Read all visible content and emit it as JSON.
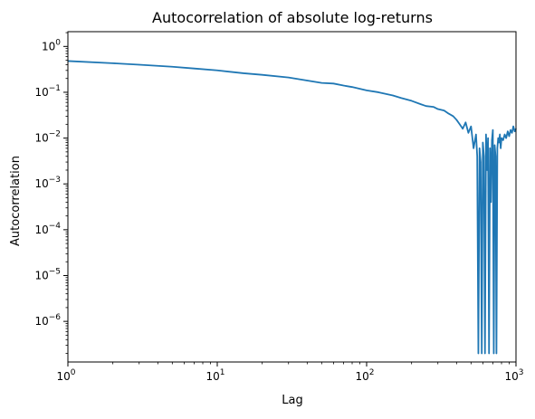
{
  "chart_data": {
    "type": "line",
    "title": "Autocorrelation of absolute log-returns",
    "xlabel": "Lag",
    "ylabel": "Autocorrelation",
    "xscale": "log",
    "yscale": "log",
    "xlim": [
      1,
      1000
    ],
    "ylim": [
      1.3e-07,
      2.1
    ],
    "grid": false,
    "x_ticks": [
      {
        "value": 1,
        "base": "10",
        "exp": "0"
      },
      {
        "value": 10,
        "base": "10",
        "exp": "1"
      },
      {
        "value": 100,
        "base": "10",
        "exp": "2"
      },
      {
        "value": 1000,
        "base": "10",
        "exp": "3"
      }
    ],
    "y_ticks": [
      {
        "value": 1e-06,
        "base": "10",
        "exp": "−6"
      },
      {
        "value": 1e-05,
        "base": "10",
        "exp": "−5"
      },
      {
        "value": 0.0001,
        "base": "10",
        "exp": "−4"
      },
      {
        "value": 0.001,
        "base": "10",
        "exp": "−3"
      },
      {
        "value": 0.01,
        "base": "10",
        "exp": "−2"
      },
      {
        "value": 0.1,
        "base": "10",
        "exp": "−1"
      },
      {
        "value": 1,
        "base": "10",
        "exp": "0"
      }
    ],
    "series": [
      {
        "color": "#1f77b4",
        "x": [
          1,
          2,
          3,
          5,
          7,
          10,
          15,
          20,
          30,
          40,
          50,
          60,
          70,
          80,
          100,
          120,
          150,
          170,
          200,
          230,
          250,
          280,
          300,
          330,
          350,
          380,
          400,
          420,
          440,
          460,
          480,
          500,
          520,
          540,
          550,
          560,
          570,
          580,
          590,
          600,
          610,
          620,
          630,
          640,
          650,
          660,
          670,
          680,
          690,
          700,
          710,
          720,
          730,
          740,
          750,
          760,
          770,
          780,
          790,
          800,
          820,
          840,
          860,
          880,
          900,
          920,
          940,
          960,
          980,
          1000
        ],
        "y": [
          0.48,
          0.43,
          0.4,
          0.36,
          0.33,
          0.3,
          0.26,
          0.24,
          0.21,
          0.18,
          0.16,
          0.155,
          0.14,
          0.13,
          0.11,
          0.1,
          0.085,
          0.075,
          0.065,
          0.055,
          0.05,
          0.048,
          0.043,
          0.04,
          0.035,
          0.03,
          0.025,
          0.02,
          0.016,
          0.022,
          0.013,
          0.018,
          0.006,
          0.012,
          0.004,
          2e-07,
          0.006,
          0.003,
          2e-07,
          0.008,
          0.004,
          2e-07,
          0.012,
          0.002,
          0.01,
          2e-07,
          0.006,
          0.0004,
          0.009,
          0.015,
          2e-07,
          0.007,
          0.004,
          2e-07,
          0.006,
          0.01,
          0.008,
          0.012,
          0.006,
          0.01,
          0.009,
          0.012,
          0.01,
          0.014,
          0.011,
          0.015,
          0.013,
          0.018,
          0.014,
          0.016
        ]
      }
    ]
  }
}
